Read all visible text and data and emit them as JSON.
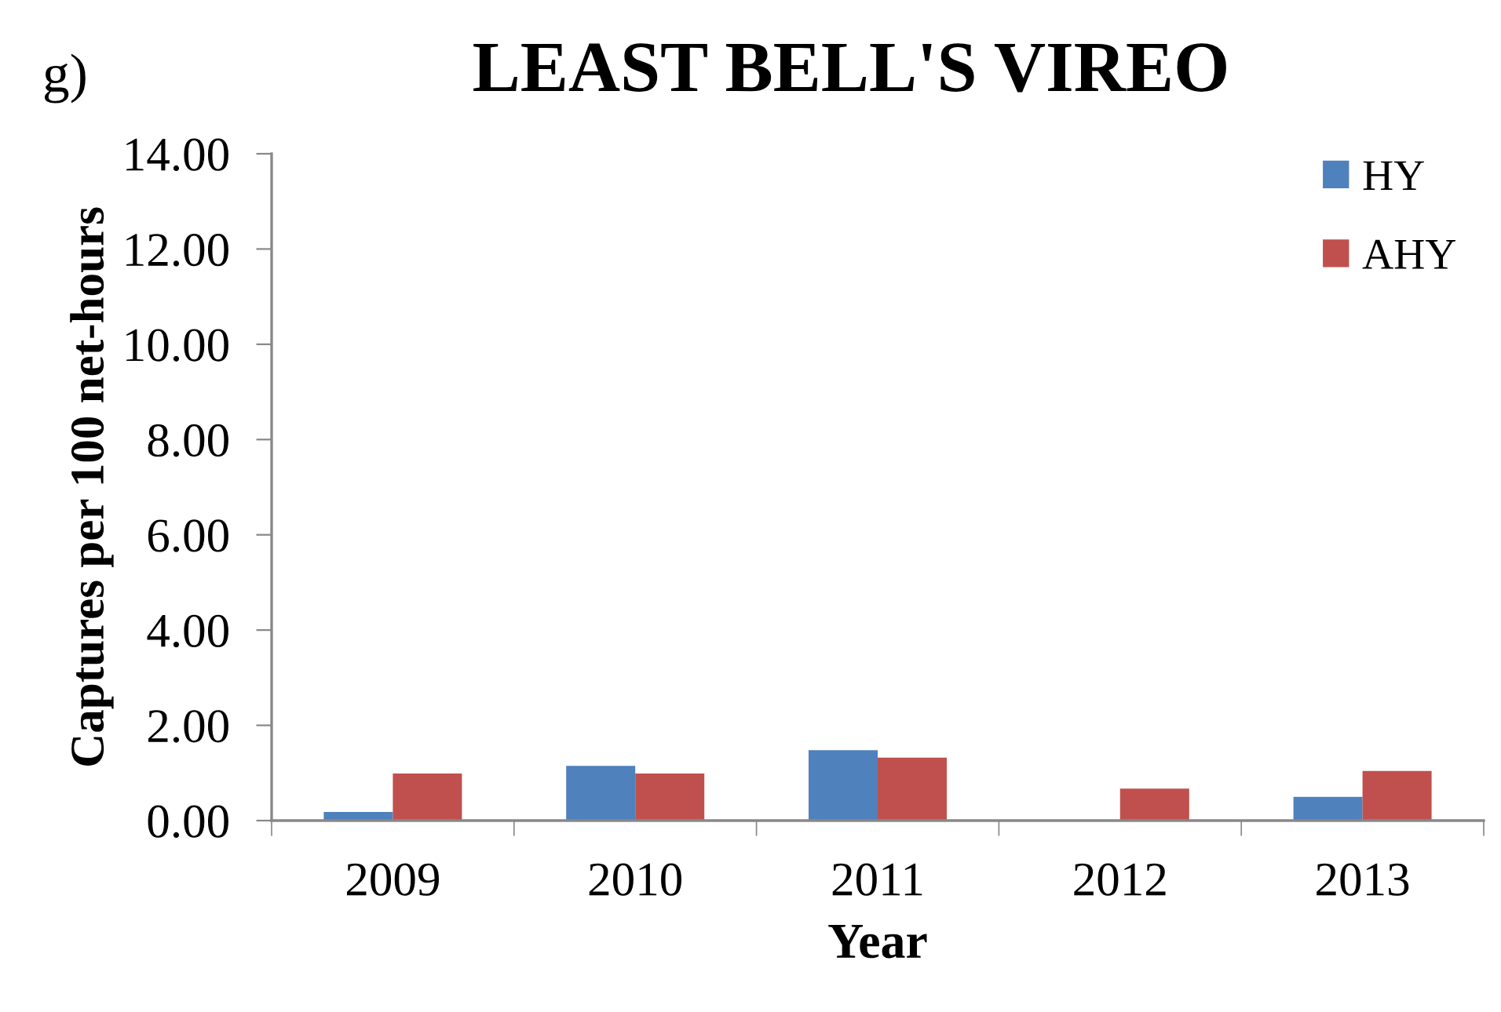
{
  "chart_data": {
    "type": "bar",
    "title": "LEAST BELL'S VIREO",
    "xlabel": "Year",
    "ylabel": "Captures per 100 net-hours",
    "annotations": [
      "g)"
    ],
    "categories": [
      "2009",
      "2010",
      "2011",
      "2012",
      "2013"
    ],
    "series": [
      {
        "name": "HY",
        "color": "#4f81bd",
        "values": [
          0.18,
          1.15,
          1.48,
          0,
          0.5
        ]
      },
      {
        "name": "AHY",
        "color": "#c0504d",
        "values": [
          0.99,
          0.99,
          1.32,
          0.67,
          1.04
        ]
      }
    ],
    "ylim": [
      0,
      14
    ],
    "yticks": [
      {
        "value": 0,
        "label": "0.00"
      },
      {
        "value": 2,
        "label": "2.00"
      },
      {
        "value": 4,
        "label": "4.00"
      },
      {
        "value": 6,
        "label": "6.00"
      },
      {
        "value": 8,
        "label": "8.00"
      },
      {
        "value": 10,
        "label": "10.00"
      },
      {
        "value": 12,
        "label": "12.00"
      },
      {
        "value": 14,
        "label": "14.00"
      }
    ],
    "grid": false,
    "legend": "top right"
  }
}
